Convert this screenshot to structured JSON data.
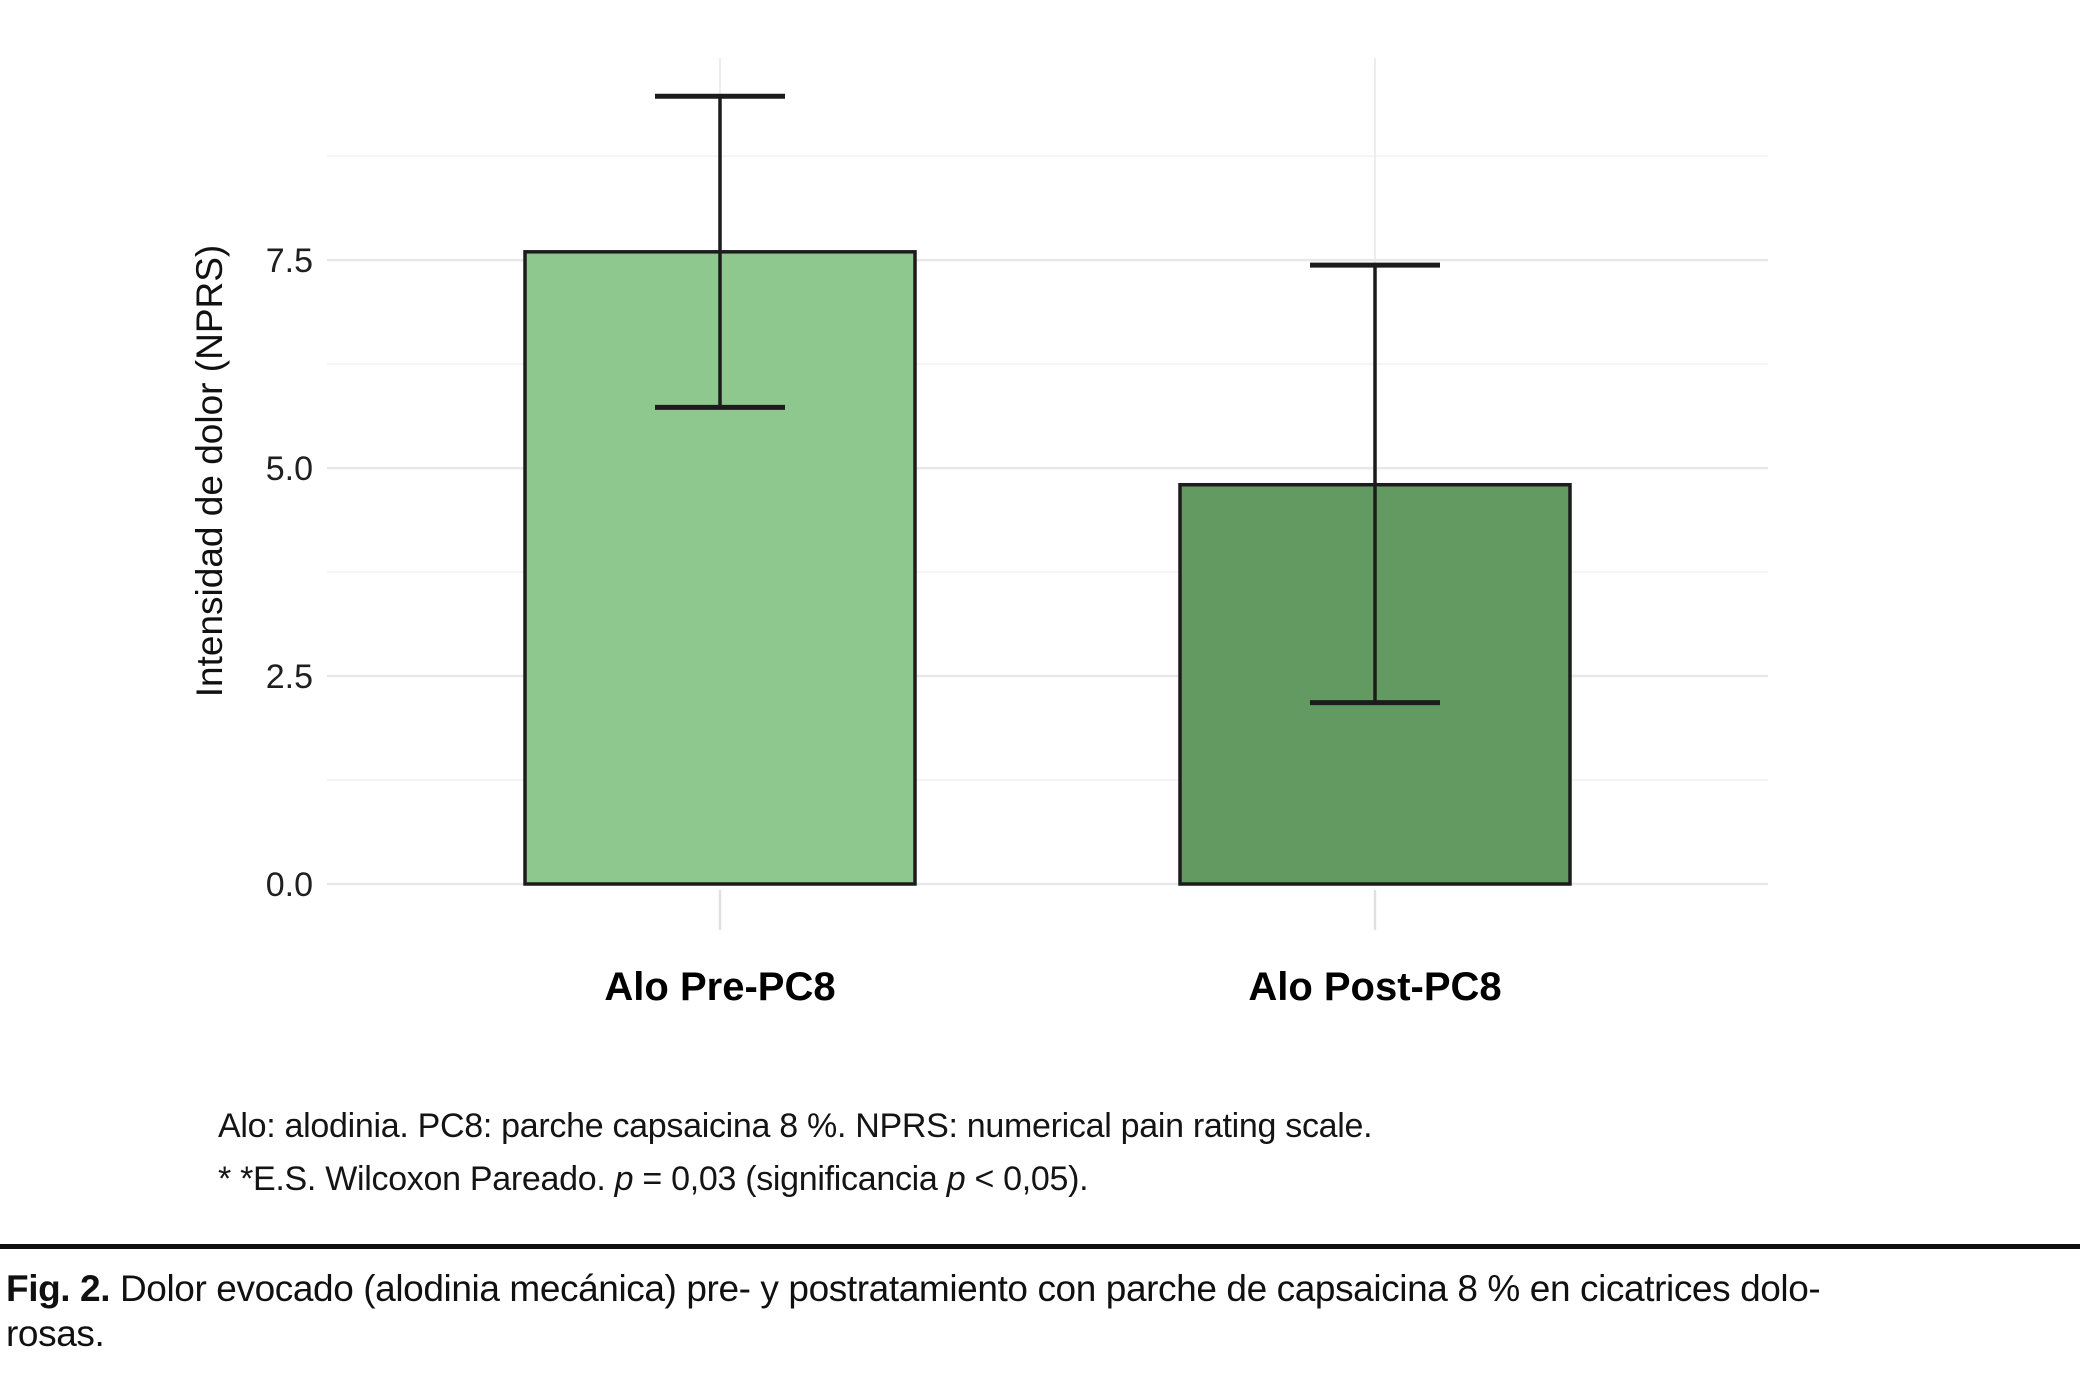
{
  "chart_data": {
    "type": "bar",
    "categories": [
      "Alo Pre-PC8",
      "Alo Post-PC8"
    ],
    "values": [
      7.6,
      4.8
    ],
    "error_low": [
      5.73,
      2.18
    ],
    "error_high": [
      9.47,
      7.44
    ],
    "bar_colors": [
      "#8ec88e",
      "#639a62"
    ],
    "bar_edge_color": "#1c1c1c",
    "errorbar_color": "#1c1c1c",
    "title": "",
    "xlabel": "",
    "ylabel": "Intensidad de dolor (NPRS)",
    "yticks": [
      0,
      2.5,
      5,
      7.5
    ],
    "ytick_labels": [
      "0.0",
      "2.5",
      "5.0",
      "7.5"
    ],
    "ylim": [
      0,
      9.93
    ],
    "grid": "horizontal major+minor light gray, faint vertical line at each category, no legend",
    "grid_major_color": "#e8e8e8",
    "grid_minor_color": "#f4f4f4",
    "grid_vertical_color": "#ededed",
    "tick_mark_color": "#e0e0e0",
    "background": "#ffffff"
  },
  "footnote": {
    "line1": "Alo: alodinia. PC8: parche capsaicina 8 %. NPRS: numerical pain rating scale.",
    "line2_segments": [
      {
        "text": "* *E.S. Wilcoxon Pareado. ",
        "italic": false
      },
      {
        "text": "p",
        "italic": true
      },
      {
        "text": " = 0,03 (significancia ",
        "italic": false
      },
      {
        "text": "p",
        "italic": true
      },
      {
        "text": " < 0,05).",
        "italic": false
      }
    ]
  },
  "caption": {
    "segments": [
      {
        "text": "Fig. 2.",
        "bold": true
      },
      {
        "text": " Dolor evocado (alodinia mecánica) pre- y postratamiento con parche de capsaicina 8 % en cicatrices dolo-",
        "bold": false
      },
      {
        "break": true
      },
      {
        "text": "rosas.",
        "bold": false
      }
    ]
  }
}
